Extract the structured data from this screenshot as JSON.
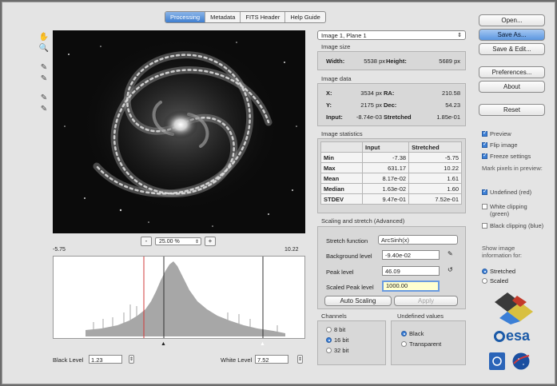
{
  "tabs": [
    "Processing",
    "Metadata",
    "FITS Header",
    "Help Guide"
  ],
  "tools": [
    {
      "icon": "hand-icon",
      "glyph": "✋"
    },
    {
      "icon": "magnifier-icon",
      "glyph": "🔍"
    },
    {
      "icon": "eyedropper-icon",
      "glyph": "✎"
    },
    {
      "icon": "eyedropper-icon",
      "glyph": "✎"
    },
    {
      "icon": "eyedropper-plus-icon",
      "glyph": "✎"
    },
    {
      "icon": "eyedropper-plus-icon",
      "glyph": "✎"
    }
  ],
  "zoom": {
    "minus": "-",
    "value": "25.00 %",
    "plus": "+"
  },
  "histogram": {
    "min_label": "-5.75",
    "max_label": "10.22"
  },
  "levels": {
    "black_label": "Black Level",
    "black_value": "1.23",
    "white_label": "White Level",
    "white_value": "7.52"
  },
  "plane_select": "Image 1, Plane 1",
  "image_size": {
    "title": "Image size",
    "width_label": "Width:",
    "width_value": "5538 px",
    "height_label": "Height:",
    "height_value": "5689 px"
  },
  "image_data": {
    "title": "Image data",
    "x_label": "X:",
    "x_value": "3534 px",
    "ra_label": "RA:",
    "ra_value": "210.58",
    "y_label": "Y:",
    "y_value": "2175 px",
    "dec_label": "Dec:",
    "dec_value": "54.23",
    "input_label": "Input:",
    "input_value": "-8.74e-03",
    "stretched_label": "Stretched",
    "stretched_value": "1.85e-01"
  },
  "image_statistics": {
    "title": "Image statistics",
    "headers": [
      "",
      "Input",
      "Stretched"
    ],
    "rows": [
      [
        "Min",
        "-7.38",
        "-5.75"
      ],
      [
        "Max",
        "631.17",
        "10.22"
      ],
      [
        "Mean",
        "8.17e-02",
        "1.61"
      ],
      [
        "Median",
        "1.63e-02",
        "1.60"
      ],
      [
        "STDEV",
        "9.47e-01",
        "7.52e-01"
      ]
    ]
  },
  "scaling": {
    "title": "Scaling and stretch (Advanced)",
    "stretch_label": "Stretch function",
    "stretch_value": "ArcSinh(x)",
    "background_label": "Background level",
    "background_value": "-9.40e-02",
    "peak_label": "Peak level",
    "peak_value": "46.09",
    "scaled_peak_label": "Scaled Peak level",
    "scaled_peak_value": "1000.00",
    "auto_button": "Auto Scaling",
    "apply_button": "Apply"
  },
  "channels": {
    "title": "Channels",
    "options": [
      "8 bit",
      "16 bit",
      "32 bit"
    ],
    "selected": "16 bit"
  },
  "undefined_values": {
    "title": "Undefined values",
    "options": [
      "Black",
      "Transparent"
    ],
    "selected": "Black"
  },
  "buttons": {
    "open": "Open...",
    "save_as": "Save As...",
    "save_edit": "Save & Edit...",
    "preferences": "Preferences...",
    "about": "About",
    "reset": "Reset"
  },
  "options": {
    "preview": "Preview",
    "flip": "Flip image",
    "freeze": "Freeze settings",
    "mark_label": "Mark pixels in preview:",
    "undefined": "Undefined (red)",
    "white_clip": "White clipping (green)",
    "black_clip": "Black clipping (blue)",
    "show_label": "Show image information for:",
    "show_options": [
      "Stretched",
      "Scaled"
    ],
    "show_selected": "Stretched"
  },
  "logo_text": "esa",
  "colors": {
    "accent": "#3b7fd6",
    "esa_blue": "#1b5aa8",
    "clip_red": "#d23a3a"
  }
}
